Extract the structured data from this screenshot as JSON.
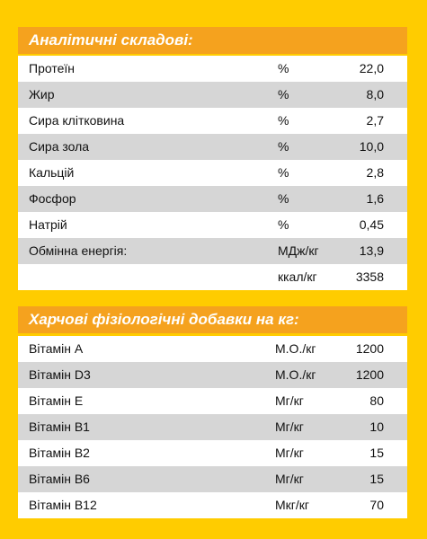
{
  "analytical": {
    "title": "Аналітичні складові:",
    "rows": [
      {
        "name": "Протеїн",
        "unit": "%",
        "value": "22,0"
      },
      {
        "name": "Жир",
        "unit": "%",
        "value": "8,0"
      },
      {
        "name": "Сира клітковина",
        "unit": "%",
        "value": "2,7"
      },
      {
        "name": "Сира зола",
        "unit": "%",
        "value": "10,0"
      },
      {
        "name": "Кальцій",
        "unit": "%",
        "value": "2,8"
      },
      {
        "name": "Фосфор",
        "unit": "%",
        "value": "1,6"
      },
      {
        "name": "Натрій",
        "unit": "%",
        "value": "0,45"
      },
      {
        "name": "Обмінна енергія:",
        "unit": "МДж/кг",
        "value": "13,9"
      },
      {
        "name": "",
        "unit": "ккал/кг",
        "value": "3358"
      }
    ]
  },
  "additives": {
    "title": "Харчові фізіологічні добавки на кг:",
    "rows": [
      {
        "name": "Вітамін А",
        "unit": "М.О./кг",
        "value": "1200"
      },
      {
        "name": "Вітамін D3",
        "unit": "М.О./кг",
        "value": "1200"
      },
      {
        "name": "Вітамін Е",
        "unit": "Мг/кг",
        "value": "80"
      },
      {
        "name": "Вітамін В1",
        "unit": "Мг/кг",
        "value": "10"
      },
      {
        "name": "Вітамін В2",
        "unit": "Мг/кг",
        "value": "15"
      },
      {
        "name": "Вітамін В6",
        "unit": "Мг/кг",
        "value": "15"
      },
      {
        "name": "Вітамін В12",
        "unit": "Мкг/кг",
        "value": "70"
      }
    ]
  },
  "colors": {
    "background": "#ffcc00",
    "header": "#f5a21e",
    "row_alt": "#d6d6d6",
    "row": "#ffffff"
  }
}
